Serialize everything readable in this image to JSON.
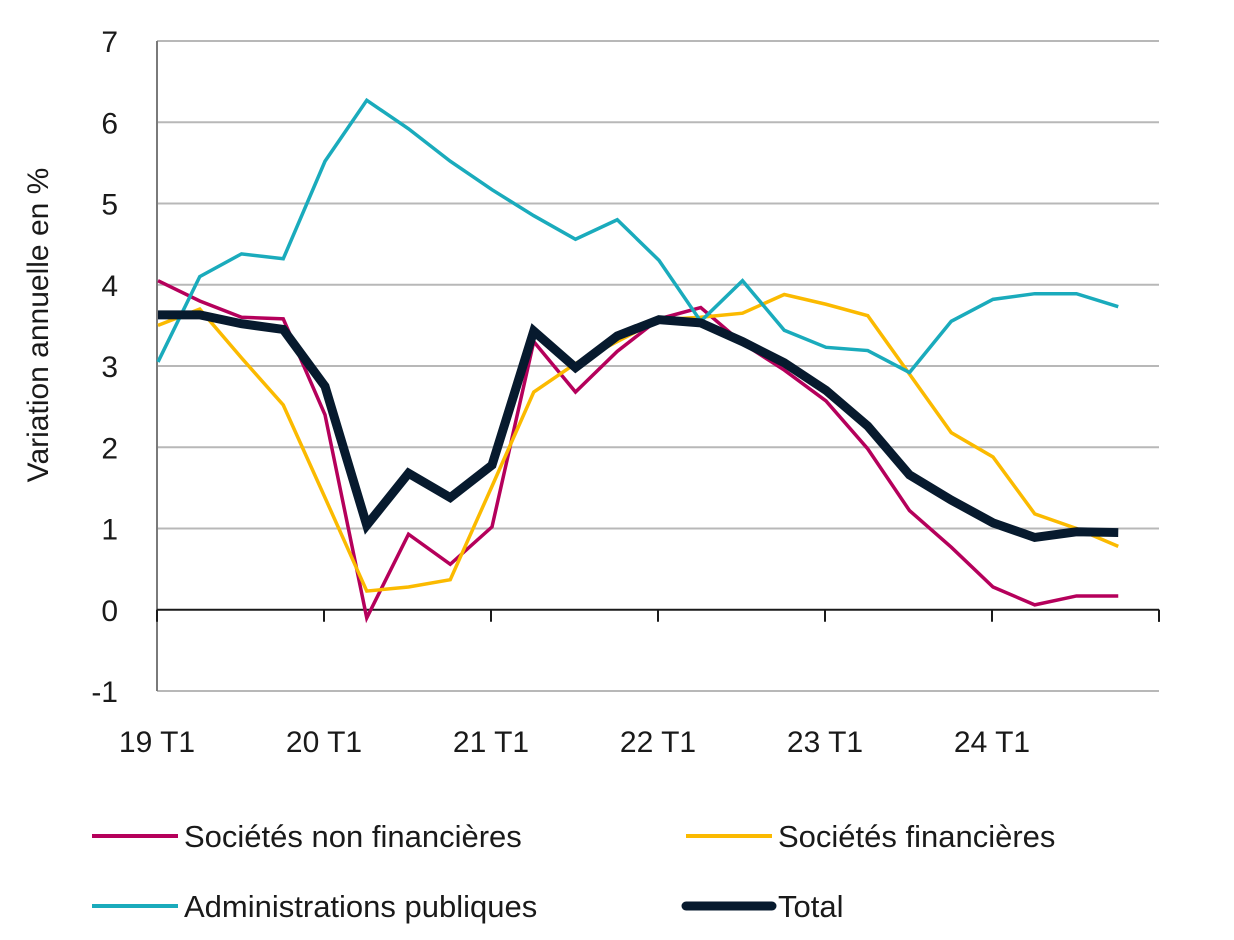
{
  "chart_data": {
    "type": "line",
    "ylabel": "Variation annuelle en %",
    "ylim": [
      -1,
      7
    ],
    "yticks": [
      -1,
      0,
      1,
      2,
      3,
      4,
      5,
      6,
      7
    ],
    "x_tick_labels": [
      "19 T1",
      "20 T1",
      "21 T1",
      "22 T1",
      "23 T1",
      "24 T1"
    ],
    "x": [
      "19 T1",
      "19 T2",
      "19 T3",
      "19 T4",
      "20 T1",
      "20 T2",
      "20 T3",
      "20 T4",
      "21 T1",
      "21 T2",
      "21 T3",
      "21 T4",
      "22 T1",
      "22 T2",
      "22 T3",
      "22 T4",
      "23 T1",
      "23 T2",
      "23 T3",
      "23 T4",
      "24 T1",
      "24 T2",
      "24 T3",
      "24 T4"
    ],
    "grid": "horizontal",
    "legend": "bottom",
    "series": [
      {
        "name": "Sociétés non financières",
        "color": "#b5005b",
        "values": [
          4.05,
          3.8,
          3.6,
          3.58,
          2.4,
          -0.1,
          0.93,
          0.56,
          1.02,
          3.3,
          2.68,
          3.18,
          3.58,
          3.72,
          3.28,
          2.95,
          2.57,
          1.98,
          1.22,
          0.77,
          0.28,
          0.06,
          0.17,
          0.17
        ]
      },
      {
        "name": "Sociétés financières",
        "color": "#fbba00",
        "values": [
          3.5,
          3.7,
          3.1,
          2.52,
          1.38,
          0.23,
          0.28,
          0.37,
          1.52,
          2.68,
          3.03,
          3.3,
          3.57,
          3.6,
          3.65,
          3.88,
          3.76,
          3.62,
          2.9,
          2.18,
          1.88,
          1.18,
          1.0,
          0.78
        ]
      },
      {
        "name": "Administrations publiques",
        "color": "#1aabbc",
        "values": [
          3.05,
          4.1,
          4.38,
          4.32,
          5.52,
          6.27,
          5.92,
          5.52,
          5.17,
          4.85,
          4.56,
          4.8,
          4.3,
          3.55,
          4.05,
          3.44,
          3.23,
          3.19,
          2.92,
          3.55,
          3.82,
          3.89,
          3.89,
          3.73
        ]
      },
      {
        "name": "Total",
        "color": "#071a2e",
        "values": [
          3.63,
          3.63,
          3.52,
          3.45,
          2.75,
          1.04,
          1.68,
          1.38,
          1.78,
          3.43,
          2.98,
          3.37,
          3.57,
          3.53,
          3.3,
          3.04,
          2.7,
          2.26,
          1.66,
          1.35,
          1.07,
          0.89,
          0.96,
          0.95
        ]
      }
    ]
  }
}
